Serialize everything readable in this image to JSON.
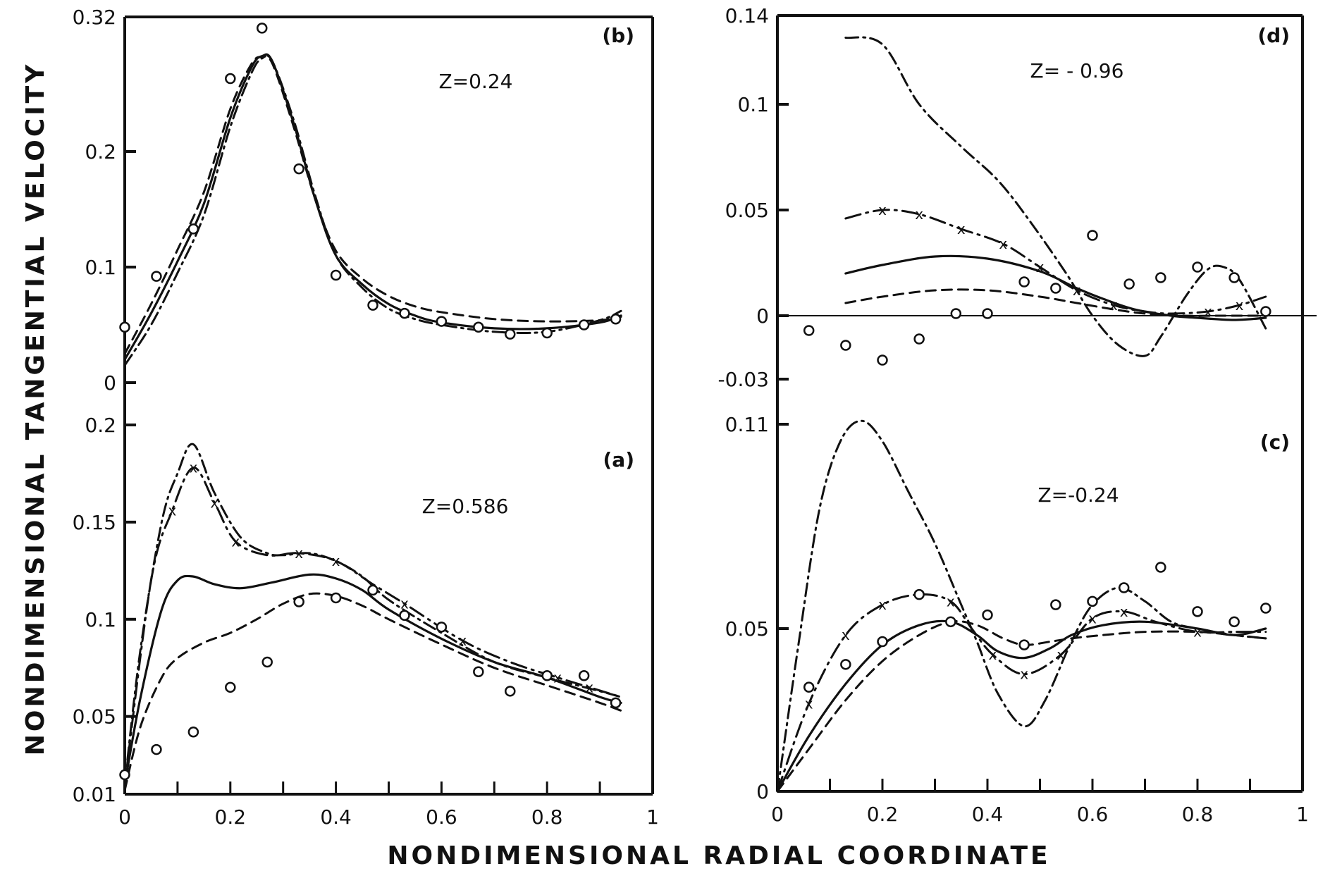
{
  "chart_data": {
    "type": "line",
    "xlabel": "NONDIMENSIONAL RADIAL COORDINATE",
    "ylabel": "NONDIMENSIONAL TANGENTIAL VELOCITY",
    "series_styles": [
      "solid",
      "dashed",
      "dash-dot",
      "dash-dot-x",
      "circles"
    ],
    "panels": [
      {
        "id": "b",
        "panel_label": "(b)",
        "z_label": "Z=0.24",
        "xlim": [
          0,
          1
        ],
        "ylim": [
          0,
          0.32
        ],
        "x_ticks": [],
        "x_tick_labels": [],
        "y_ticks": [
          0,
          0.1,
          0.2,
          0.32
        ],
        "y_tick_labels": [
          "0",
          "0.1",
          "0.2",
          "0.32"
        ],
        "series": [
          {
            "name": "solid",
            "style": "solid",
            "x": [
              0,
              0.05,
              0.1,
              0.15,
              0.2,
              0.24,
              0.26,
              0.28,
              0.32,
              0.36,
              0.4,
              0.45,
              0.5,
              0.55,
              0.6,
              0.7,
              0.8,
              0.9,
              0.94
            ],
            "y": [
              0.02,
              0.06,
              0.105,
              0.155,
              0.23,
              0.275,
              0.285,
              0.28,
              0.225,
              0.16,
              0.11,
              0.085,
              0.068,
              0.058,
              0.052,
              0.047,
              0.047,
              0.052,
              0.058
            ]
          },
          {
            "name": "dashed",
            "style": "dashed",
            "x": [
              0,
              0.05,
              0.1,
              0.15,
              0.2,
              0.24,
              0.26,
              0.28,
              0.32,
              0.36,
              0.4,
              0.45,
              0.5,
              0.55,
              0.6,
              0.7,
              0.8,
              0.9,
              0.94
            ],
            "y": [
              0.025,
              0.068,
              0.115,
              0.165,
              0.238,
              0.278,
              0.284,
              0.278,
              0.222,
              0.16,
              0.114,
              0.09,
              0.075,
              0.066,
              0.061,
              0.055,
              0.053,
              0.054,
              0.057
            ]
          },
          {
            "name": "dash-dot",
            "style": "dash-dot",
            "x": [
              0,
              0.05,
              0.1,
              0.15,
              0.2,
              0.24,
              0.26,
              0.28,
              0.32,
              0.36,
              0.4,
              0.45,
              0.5,
              0.55,
              0.6,
              0.7,
              0.8,
              0.9,
              0.94
            ],
            "y": [
              0.015,
              0.05,
              0.095,
              0.145,
              0.222,
              0.27,
              0.283,
              0.28,
              0.228,
              0.163,
              0.11,
              0.082,
              0.064,
              0.055,
              0.05,
              0.044,
              0.044,
              0.054,
              0.062
            ]
          },
          {
            "name": "experiment",
            "style": "circles",
            "x": [
              0,
              0.06,
              0.13,
              0.2,
              0.26,
              0.33,
              0.4,
              0.47,
              0.53,
              0.6,
              0.67,
              0.73,
              0.8,
              0.87,
              0.93
            ],
            "y": [
              0.048,
              0.092,
              0.133,
              0.265,
              0.31,
              0.185,
              0.093,
              0.067,
              0.06,
              0.053,
              0.048,
              0.042,
              0.043,
              0.05,
              0.055
            ]
          }
        ]
      },
      {
        "id": "a",
        "panel_label": "(a)",
        "z_label": "Z=0.586",
        "xlim": [
          0,
          1
        ],
        "ylim": [
          0.01,
          0.2
        ],
        "x_ticks": [
          0,
          0.1,
          0.2,
          0.3,
          0.4,
          0.5,
          0.6,
          0.7,
          0.8,
          0.9,
          1
        ],
        "x_tick_labels": [
          "0",
          "",
          "0.2",
          "",
          "0.4",
          "",
          "0.6",
          "",
          "0.8",
          "",
          "1"
        ],
        "y_ticks": [
          0.01,
          0.05,
          0.1,
          0.15,
          0.2
        ],
        "y_tick_labels": [
          "0.01",
          "0.05",
          "0.1",
          "0.15",
          "0.2"
        ],
        "series": [
          {
            "name": "solid",
            "style": "solid",
            "x": [
              0,
              0.03,
              0.07,
              0.1,
              0.13,
              0.17,
              0.22,
              0.28,
              0.35,
              0.4,
              0.45,
              0.5,
              0.6,
              0.7,
              0.8,
              0.9,
              0.94
            ],
            "y": [
              0.015,
              0.06,
              0.105,
              0.12,
              0.122,
              0.118,
              0.116,
              0.119,
              0.123,
              0.121,
              0.115,
              0.105,
              0.09,
              0.078,
              0.07,
              0.06,
              0.057
            ]
          },
          {
            "name": "dashed",
            "style": "dashed",
            "x": [
              0,
              0.03,
              0.07,
              0.1,
              0.15,
              0.2,
              0.25,
              0.3,
              0.35,
              0.4,
              0.45,
              0.5,
              0.6,
              0.7,
              0.8,
              0.9,
              0.94
            ],
            "y": [
              0.012,
              0.045,
              0.07,
              0.08,
              0.088,
              0.093,
              0.1,
              0.108,
              0.113,
              0.112,
              0.107,
              0.1,
              0.087,
              0.075,
              0.066,
              0.057,
              0.053
            ]
          },
          {
            "name": "dash-dot",
            "style": "dash-dot",
            "x": [
              0,
              0.03,
              0.07,
              0.1,
              0.13,
              0.17,
              0.22,
              0.27,
              0.3,
              0.35,
              0.4,
              0.45,
              0.5,
              0.6,
              0.7,
              0.8,
              0.9,
              0.94
            ],
            "y": [
              0.015,
              0.085,
              0.15,
              0.175,
              0.19,
              0.165,
              0.142,
              0.134,
              0.133,
              0.134,
              0.13,
              0.122,
              0.11,
              0.093,
              0.078,
              0.07,
              0.063,
              0.06
            ]
          },
          {
            "name": "x-marked",
            "style": "dash-dot-x",
            "x": [
              0,
              0.05,
              0.09,
              0.13,
              0.17,
              0.21,
              0.27,
              0.33,
              0.4,
              0.47,
              0.53,
              0.64,
              0.73,
              0.82,
              0.88,
              0.94
            ],
            "y": [
              0.015,
              0.12,
              0.156,
              0.178,
              0.16,
              0.14,
              0.133,
              0.134,
              0.13,
              0.118,
              0.108,
              0.089,
              0.078,
              0.07,
              0.065,
              0.06
            ]
          },
          {
            "name": "experiment",
            "style": "circles",
            "x": [
              0,
              0.06,
              0.13,
              0.2,
              0.27,
              0.33,
              0.4,
              0.47,
              0.53,
              0.6,
              0.67,
              0.73,
              0.8,
              0.87,
              0.93
            ],
            "y": [
              0.02,
              0.033,
              0.042,
              0.065,
              0.078,
              0.109,
              0.111,
              0.115,
              0.102,
              0.096,
              0.073,
              0.063,
              0.071,
              0.071,
              0.057
            ]
          }
        ],
        "x_markers": {
          "x": [
            0.09,
            0.13,
            0.17,
            0.21,
            0.33,
            0.4,
            0.53,
            0.64,
            0.82,
            0.88
          ],
          "y": [
            0.156,
            0.178,
            0.16,
            0.14,
            0.134,
            0.13,
            0.108,
            0.089,
            0.07,
            0.065
          ]
        }
      },
      {
        "id": "d",
        "panel_label": "(d)",
        "z_label": "Z= - 0.96",
        "xlim": [
          0,
          1
        ],
        "ylim": [
          -0.03,
          0.14
        ],
        "x_ticks": [],
        "x_tick_labels": [],
        "y_ticks": [
          -0.03,
          0,
          0.05,
          0.1,
          0.14
        ],
        "y_tick_labels": [
          "-0.03",
          "0",
          "0.05",
          "0.1",
          "0.14"
        ],
        "zero_line": true,
        "series": [
          {
            "name": "solid",
            "style": "solid",
            "x": [
              0.13,
              0.2,
              0.3,
              0.4,
              0.5,
              0.57,
              0.62,
              0.68,
              0.75,
              0.8,
              0.87,
              0.93
            ],
            "y": [
              0.02,
              0.024,
              0.028,
              0.027,
              0.021,
              0.013,
              0.008,
              0.003,
              0.0,
              -0.001,
              -0.002,
              -0.001
            ]
          },
          {
            "name": "dashed",
            "style": "dashed",
            "x": [
              0.13,
              0.2,
              0.3,
              0.4,
              0.5,
              0.57,
              0.64,
              0.7,
              0.77,
              0.85,
              0.93
            ],
            "y": [
              0.006,
              0.009,
              0.012,
              0.012,
              0.009,
              0.006,
              0.003,
              0.001,
              0.0,
              0.0,
              0.0
            ]
          },
          {
            "name": "dash-dot",
            "style": "dash-dot",
            "x": [
              0.13,
              0.2,
              0.27,
              0.35,
              0.42,
              0.48,
              0.55,
              0.6,
              0.65,
              0.7,
              0.73,
              0.78,
              0.82,
              0.85,
              0.88,
              0.93
            ],
            "y": [
              0.13,
              0.127,
              0.1,
              0.08,
              0.064,
              0.045,
              0.02,
              0.0,
              -0.014,
              -0.019,
              -0.01,
              0.01,
              0.022,
              0.023,
              0.017,
              -0.006
            ]
          },
          {
            "name": "x-marked",
            "style": "dash-dot-x",
            "x": [
              0.13,
              0.2,
              0.27,
              0.35,
              0.43,
              0.5,
              0.57,
              0.64,
              0.7,
              0.75,
              0.82,
              0.88,
              0.93
            ],
            "y": [
              0.046,
              0.05,
              0.048,
              0.041,
              0.034,
              0.023,
              0.012,
              0.005,
              0.002,
              0.001,
              0.002,
              0.005,
              0.009
            ]
          },
          {
            "name": "experiment",
            "style": "circles",
            "x": [
              0.06,
              0.13,
              0.2,
              0.27,
              0.34,
              0.4,
              0.47,
              0.53,
              0.6,
              0.67,
              0.73,
              0.8,
              0.87,
              0.93
            ],
            "y": [
              -0.007,
              -0.014,
              -0.021,
              -0.011,
              0.001,
              0.001,
              0.016,
              0.013,
              0.038,
              0.015,
              0.018,
              0.023,
              0.018,
              0.002
            ]
          }
        ],
        "x_markers": {
          "x": [
            0.2,
            0.27,
            0.35,
            0.43,
            0.5,
            0.57,
            0.64,
            0.82,
            0.88
          ],
          "y": [
            0.05,
            0.048,
            0.041,
            0.034,
            0.023,
            0.012,
            0.005,
            0.002,
            0.005
          ]
        }
      },
      {
        "id": "c",
        "panel_label": "(c)",
        "z_label": "Z=-0.24",
        "xlim": [
          0,
          1
        ],
        "ylim": [
          0,
          0.11
        ],
        "x_ticks": [
          0,
          0.1,
          0.2,
          0.3,
          0.4,
          0.5,
          0.6,
          0.7,
          0.8,
          0.9,
          1
        ],
        "x_tick_labels": [
          "0",
          "",
          "0.2",
          "",
          "0.4",
          "",
          "0.6",
          "",
          "0.8",
          "",
          "1"
        ],
        "y_ticks": [
          0,
          0.05,
          0.11
        ],
        "y_tick_labels": [
          "0",
          "0.05",
          "0.11"
        ],
        "series": [
          {
            "name": "solid",
            "style": "solid",
            "x": [
              0,
              0.06,
              0.13,
              0.2,
              0.27,
              0.33,
              0.38,
              0.42,
              0.47,
              0.52,
              0.56,
              0.62,
              0.7,
              0.8,
              0.87,
              0.93
            ],
            "y": [
              0,
              0.017,
              0.033,
              0.045,
              0.051,
              0.052,
              0.048,
              0.043,
              0.041,
              0.044,
              0.048,
              0.051,
              0.052,
              0.05,
              0.048,
              0.05
            ]
          },
          {
            "name": "dashed",
            "style": "dashed",
            "x": [
              0,
              0.06,
              0.13,
              0.2,
              0.27,
              0.33,
              0.38,
              0.43,
              0.47,
              0.52,
              0.56,
              0.62,
              0.7,
              0.8,
              0.87,
              0.93
            ],
            "y": [
              0,
              0.013,
              0.028,
              0.04,
              0.048,
              0.052,
              0.051,
              0.047,
              0.045,
              0.046,
              0.047,
              0.048,
              0.049,
              0.049,
              0.048,
              0.047
            ]
          },
          {
            "name": "dash-dot",
            "style": "dash-dot",
            "x": [
              0,
              0.04,
              0.08,
              0.12,
              0.16,
              0.2,
              0.25,
              0.3,
              0.35,
              0.38,
              0.42,
              0.47,
              0.51,
              0.56,
              0.6,
              0.65,
              0.7,
              0.75,
              0.8,
              0.87,
              0.93
            ],
            "y": [
              0,
              0.045,
              0.085,
              0.105,
              0.111,
              0.105,
              0.09,
              0.075,
              0.057,
              0.046,
              0.03,
              0.02,
              0.028,
              0.046,
              0.057,
              0.062,
              0.058,
              0.052,
              0.05,
              0.048,
              0.047
            ]
          },
          {
            "name": "x-marked",
            "style": "dash-dot-x",
            "x": [
              0,
              0.06,
              0.13,
              0.2,
              0.27,
              0.33,
              0.37,
              0.41,
              0.47,
              0.54,
              0.6,
              0.66,
              0.72,
              0.8,
              0.87,
              0.93
            ],
            "y": [
              0,
              0.027,
              0.048,
              0.057,
              0.06,
              0.058,
              0.05,
              0.042,
              0.036,
              0.042,
              0.053,
              0.055,
              0.052,
              0.049,
              0.049,
              0.049
            ]
          },
          {
            "name": "experiment",
            "style": "circles",
            "x": [
              0.06,
              0.13,
              0.2,
              0.27,
              0.33,
              0.4,
              0.47,
              0.53,
              0.6,
              0.66,
              0.73,
              0.8,
              0.87,
              0.93
            ],
            "y": [
              0.032,
              0.039,
              0.046,
              0.06,
              0.052,
              0.054,
              0.045,
              0.057,
              0.058,
              0.062,
              0.068,
              0.055,
              0.052,
              0.056
            ]
          }
        ],
        "x_markers": {
          "x": [
            0.06,
            0.13,
            0.2,
            0.33,
            0.41,
            0.47,
            0.54,
            0.6,
            0.66,
            0.8
          ],
          "y": [
            0.027,
            0.048,
            0.057,
            0.058,
            0.042,
            0.036,
            0.042,
            0.053,
            0.055,
            0.049
          ]
        }
      }
    ]
  }
}
